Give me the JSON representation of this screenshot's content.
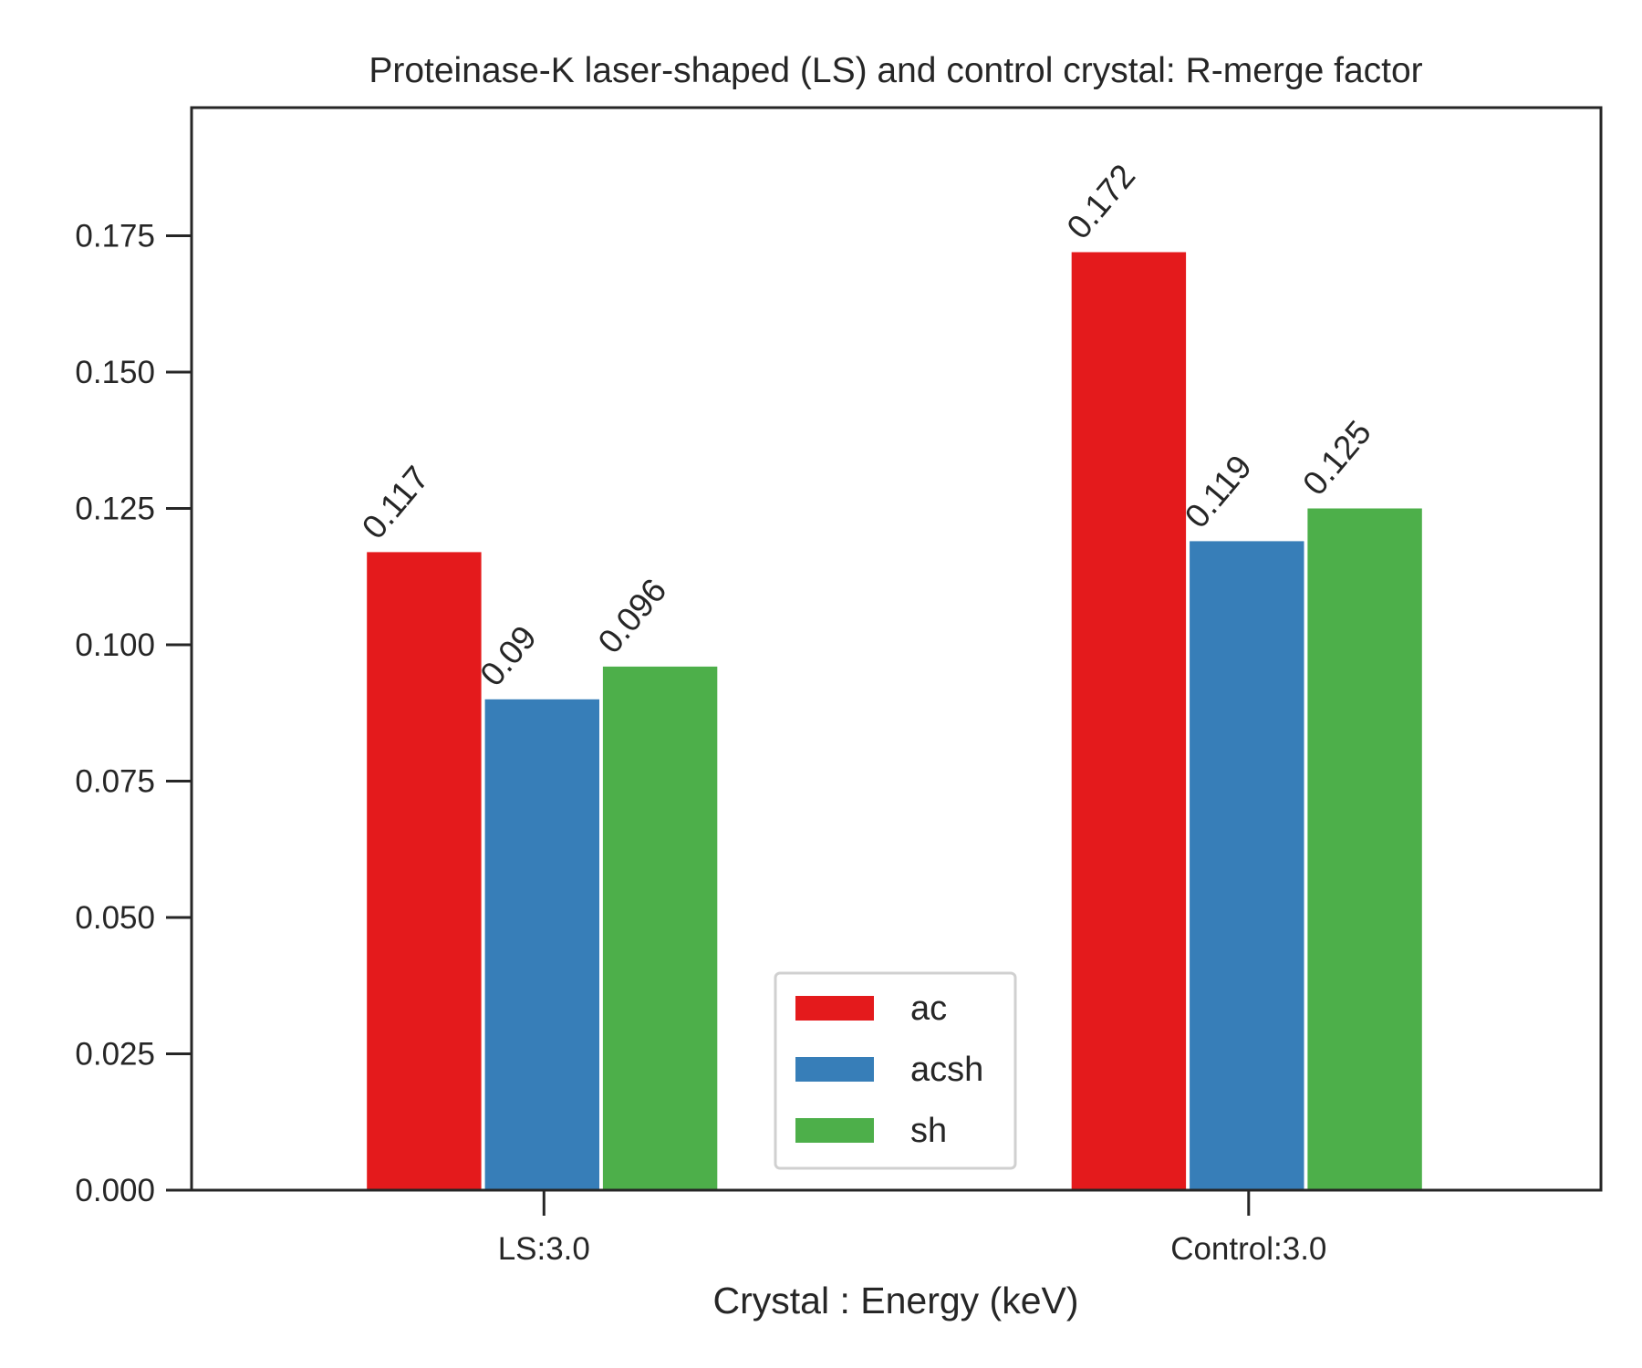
{
  "chart_data": {
    "type": "bar",
    "title": "Proteinase-K laser-shaped (LS) and control crystal: R-merge factor",
    "xlabel": "Crystal : Energy (keV)",
    "ylabel": "",
    "categories": [
      "LS:3.0",
      "Control:3.0"
    ],
    "series": [
      {
        "name": "ac",
        "values": [
          0.117,
          0.172
        ],
        "labels": [
          "0.117",
          "0.172"
        ],
        "color": "#e41a1c"
      },
      {
        "name": "acsh",
        "values": [
          0.09,
          0.119
        ],
        "labels": [
          "0.09",
          "0.119"
        ],
        "color": "#377eb8"
      },
      {
        "name": "sh",
        "values": [
          0.096,
          0.125
        ],
        "labels": [
          "0.096",
          "0.125"
        ],
        "color": "#4daf4a"
      }
    ],
    "ylim": [
      0,
      0.1985
    ],
    "yticks": [
      0.0,
      0.025,
      0.05,
      0.075,
      0.1,
      0.125,
      0.15,
      0.175
    ],
    "ytick_labels": [
      "0.000",
      "0.025",
      "0.050",
      "0.075",
      "0.100",
      "0.125",
      "0.150",
      "0.175"
    ],
    "grid": false,
    "legend_position": "lower-center"
  }
}
